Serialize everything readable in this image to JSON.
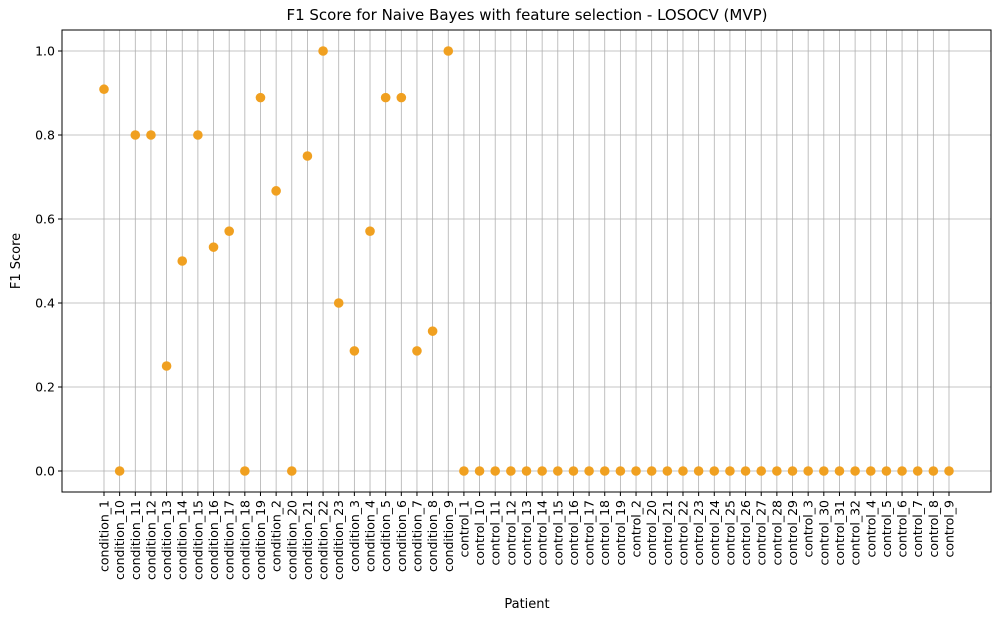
{
  "chart_data": {
    "type": "scatter",
    "title": "F1 Score for Naive Bayes with feature selection - LOSOCV (MVP)",
    "xlabel": "Patient",
    "ylabel": "F1 Score",
    "ylim": [
      -0.05,
      1.05
    ],
    "yticks": [
      "0.0",
      "0.2",
      "0.4",
      "0.6",
      "0.8",
      "1.0"
    ],
    "grid": true,
    "marker_color": "#f0a020",
    "categories": [
      "condition_1",
      "condition_10",
      "condition_11",
      "condition_12",
      "condition_13",
      "condition_14",
      "condition_15",
      "condition_16",
      "condition_17",
      "condition_18",
      "condition_19",
      "condition_2",
      "condition_20",
      "condition_21",
      "condition_22",
      "condition_23",
      "condition_3",
      "condition_4",
      "condition_5",
      "condition_6",
      "condition_7",
      "condition_8",
      "condition_9",
      "control_1",
      "control_10",
      "control_11",
      "control_12",
      "control_13",
      "control_14",
      "control_15",
      "control_16",
      "control_17",
      "control_18",
      "control_19",
      "control_2",
      "control_20",
      "control_21",
      "control_22",
      "control_23",
      "control_24",
      "control_25",
      "control_26",
      "control_27",
      "control_28",
      "control_29",
      "control_3",
      "control_30",
      "control_31",
      "control_32",
      "control_4",
      "control_5",
      "control_6",
      "control_7",
      "control_8",
      "control_9"
    ],
    "values": [
      0.909,
      0.0,
      0.8,
      0.8,
      0.25,
      0.5,
      0.8,
      0.533,
      0.571,
      0.0,
      0.889,
      0.667,
      0.0,
      0.75,
      1.0,
      0.4,
      0.286,
      0.571,
      0.889,
      0.889,
      0.286,
      0.333,
      1.0,
      0.0,
      0.0,
      0.0,
      0.0,
      0.0,
      0.0,
      0.0,
      0.0,
      0.0,
      0.0,
      0.0,
      0.0,
      0.0,
      0.0,
      0.0,
      0.0,
      0.0,
      0.0,
      0.0,
      0.0,
      0.0,
      0.0,
      0.0,
      0.0,
      0.0,
      0.0,
      0.0,
      0.0,
      0.0,
      0.0,
      0.0,
      0.0
    ]
  }
}
